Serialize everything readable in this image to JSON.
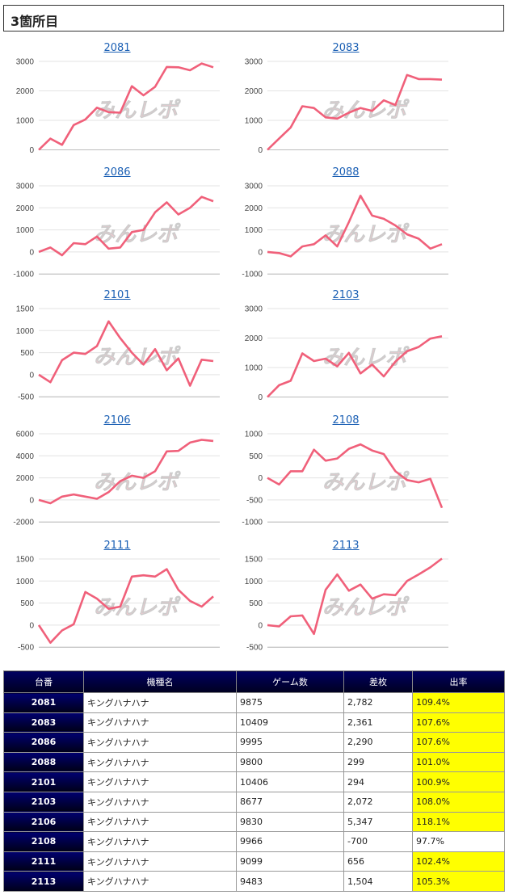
{
  "section": {
    "title": "3箇所目"
  },
  "watermark": "みんレポ",
  "chart_data": [
    {
      "type": "line",
      "title": "2081",
      "yticks": [
        "3000",
        "2000",
        "1000",
        "0"
      ],
      "ylim": [
        0,
        3000
      ],
      "values": [
        0,
        380,
        170,
        840,
        1030,
        1430,
        1280,
        1260,
        2160,
        1850,
        2140,
        2810,
        2800,
        2700,
        2930,
        2800
      ]
    },
    {
      "type": "line",
      "title": "2083",
      "yticks": [
        "3000",
        "2000",
        "1000",
        "0"
      ],
      "ylim": [
        0,
        3000
      ],
      "values": [
        0,
        380,
        760,
        1480,
        1420,
        1100,
        1060,
        1260,
        1420,
        1320,
        1680,
        1520,
        2540,
        2400,
        2400,
        2380
      ]
    },
    {
      "type": "line",
      "title": "2086",
      "yticks": [
        "3000",
        "2000",
        "1000",
        "0",
        "-1000"
      ],
      "ylim": [
        -1000,
        3000
      ],
      "values": [
        0,
        200,
        -150,
        400,
        350,
        700,
        150,
        200,
        900,
        1000,
        1800,
        2250,
        1700,
        2000,
        2500,
        2300
      ]
    },
    {
      "type": "line",
      "title": "2088",
      "yticks": [
        "3000",
        "2000",
        "1000",
        "0",
        "-1000"
      ],
      "ylim": [
        -1000,
        3000
      ],
      "values": [
        0,
        -50,
        -200,
        250,
        350,
        750,
        250,
        1350,
        2550,
        1650,
        1500,
        1200,
        800,
        600,
        150,
        350
      ]
    },
    {
      "type": "line",
      "title": "2101",
      "yticks": [
        "1500",
        "1000",
        "500",
        "0",
        "-500"
      ],
      "ylim": [
        -500,
        1500
      ],
      "values": [
        0,
        -170,
        330,
        500,
        470,
        650,
        1210,
        830,
        500,
        230,
        580,
        100,
        370,
        -250,
        340,
        310
      ]
    },
    {
      "type": "line",
      "title": "2103",
      "yticks": [
        "3000",
        "2000",
        "1000",
        "0"
      ],
      "ylim": [
        0,
        3000
      ],
      "values": [
        0,
        400,
        550,
        1480,
        1220,
        1300,
        1040,
        1500,
        800,
        1100,
        700,
        1200,
        1550,
        1700,
        1980,
        2060
      ]
    },
    {
      "type": "line",
      "title": "2106",
      "yticks": [
        "6000",
        "4000",
        "2000",
        "0",
        "-2000"
      ],
      "ylim": [
        -2000,
        6000
      ],
      "values": [
        0,
        -300,
        300,
        500,
        300,
        100,
        700,
        1700,
        2200,
        2000,
        2600,
        4400,
        4450,
        5200,
        5450,
        5350
      ]
    },
    {
      "type": "line",
      "title": "2108",
      "yticks": [
        "1000",
        "500",
        "0",
        "-500",
        "-1000"
      ],
      "ylim": [
        -1000,
        1000
      ],
      "values": [
        0,
        -150,
        150,
        150,
        640,
        390,
        440,
        660,
        760,
        620,
        540,
        150,
        -50,
        -100,
        -20,
        -680
      ]
    },
    {
      "type": "line",
      "title": "2111",
      "yticks": [
        "1500",
        "1000",
        "500",
        "0",
        "-500"
      ],
      "ylim": [
        -500,
        1500
      ],
      "values": [
        0,
        -400,
        -120,
        20,
        750,
        600,
        370,
        420,
        1100,
        1130,
        1100,
        1270,
        800,
        550,
        420,
        650
      ]
    },
    {
      "type": "line",
      "title": "2113",
      "yticks": [
        "1500",
        "1000",
        "500",
        "0",
        "-500"
      ],
      "ylim": [
        -500,
        1500
      ],
      "values": [
        0,
        -30,
        200,
        220,
        -200,
        800,
        1150,
        780,
        920,
        600,
        700,
        680,
        1000,
        1150,
        1310,
        1510
      ]
    }
  ],
  "table": {
    "headers": [
      "台番",
      "機種名",
      "ゲーム数",
      "差枚",
      "出率"
    ],
    "rows": [
      {
        "id": "2081",
        "model": "キングハナハナ",
        "games": "9875",
        "diff": "2,782",
        "rate": "109.4%",
        "hi": true,
        "neg": false
      },
      {
        "id": "2083",
        "model": "キングハナハナ",
        "games": "10409",
        "diff": "2,361",
        "rate": "107.6%",
        "hi": true,
        "neg": false
      },
      {
        "id": "2086",
        "model": "キングハナハナ",
        "games": "9995",
        "diff": "2,290",
        "rate": "107.6%",
        "hi": true,
        "neg": false
      },
      {
        "id": "2088",
        "model": "キングハナハナ",
        "games": "9800",
        "diff": "299",
        "rate": "101.0%",
        "hi": true,
        "neg": false
      },
      {
        "id": "2101",
        "model": "キングハナハナ",
        "games": "10406",
        "diff": "294",
        "rate": "100.9%",
        "hi": true,
        "neg": false
      },
      {
        "id": "2103",
        "model": "キングハナハナ",
        "games": "8677",
        "diff": "2,072",
        "rate": "108.0%",
        "hi": true,
        "neg": false
      },
      {
        "id": "2106",
        "model": "キングハナハナ",
        "games": "9830",
        "diff": "5,347",
        "rate": "118.1%",
        "hi": true,
        "neg": false
      },
      {
        "id": "2108",
        "model": "キングハナハナ",
        "games": "9966",
        "diff": "-700",
        "rate": "97.7%",
        "hi": false,
        "neg": true
      },
      {
        "id": "2111",
        "model": "キングハナハナ",
        "games": "9099",
        "diff": "656",
        "rate": "102.4%",
        "hi": true,
        "neg": false
      },
      {
        "id": "2113",
        "model": "キングハナハナ",
        "games": "9483",
        "diff": "1,504",
        "rate": "105.3%",
        "hi": true,
        "neg": false
      }
    ]
  },
  "colors": {
    "line": "#f0607a",
    "highlight": "#ffff00",
    "header_bg": "#000040",
    "negative": "#e00000"
  }
}
